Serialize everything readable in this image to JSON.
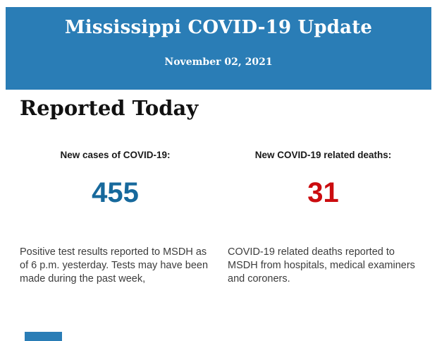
{
  "header": {
    "title": "Mississippi COVID-19 Update",
    "date": "November 02, 2021",
    "background_color": "#2a7db6",
    "text_color": "#ffffff"
  },
  "section": {
    "heading": "Reported Today"
  },
  "stats": [
    {
      "label": "New cases of COVID-19:",
      "value": "455",
      "value_color": "#17699c",
      "description": "Positive test results reported to MSDH as of 6 p.m. yesterday. Tests may have been made during the past week,"
    },
    {
      "label": "New COVID-19 related deaths:",
      "value": "31",
      "value_color": "#cb0c0f",
      "description": "COVID-19 related deaths reported to MSDH from hospitals, medical examiners and coroners."
    }
  ]
}
